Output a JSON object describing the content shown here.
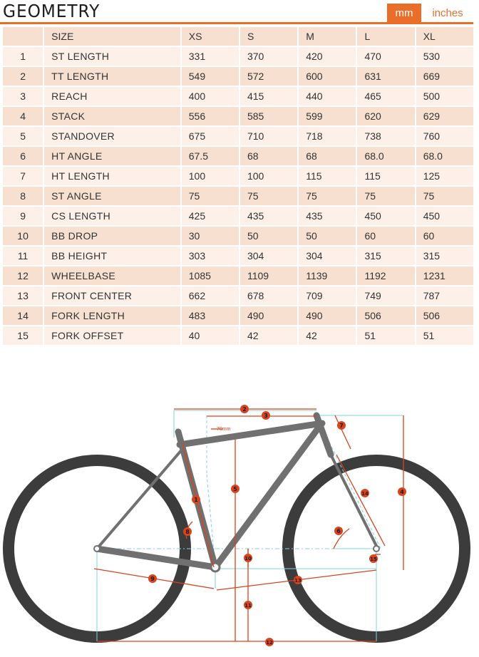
{
  "header": {
    "title": "GEOMETRY",
    "unit_active": "mm",
    "unit_inactive": "inches"
  },
  "table": {
    "columns": [
      "SIZE",
      "XS",
      "S",
      "M",
      "L",
      "XL"
    ],
    "rows": [
      {
        "no": "1",
        "name": "ST LENGTH",
        "values": [
          "331",
          "370",
          "420",
          "470",
          "530"
        ]
      },
      {
        "no": "2",
        "name": "TT LENGTH",
        "values": [
          "549",
          "572",
          "600",
          "631",
          "669"
        ]
      },
      {
        "no": "3",
        "name": "REACH",
        "values": [
          "400",
          "415",
          "440",
          "465",
          "500"
        ]
      },
      {
        "no": "4",
        "name": "STACK",
        "values": [
          "556",
          "585",
          "599",
          "620",
          "629"
        ]
      },
      {
        "no": "5",
        "name": "STANDOVER",
        "values": [
          "675",
          "710",
          "718",
          "738",
          "760"
        ]
      },
      {
        "no": "6",
        "name": "HT ANGLE",
        "values": [
          "67.5",
          "68",
          "68",
          "68.0",
          "68.0"
        ]
      },
      {
        "no": "7",
        "name": "HT LENGTH",
        "values": [
          "100",
          "100",
          "115",
          "115",
          "125"
        ]
      },
      {
        "no": "8",
        "name": "ST ANGLE",
        "values": [
          "75",
          "75",
          "75",
          "75",
          "75"
        ]
      },
      {
        "no": "9",
        "name": "CS LENGTH",
        "values": [
          "425",
          "435",
          "435",
          "450",
          "450"
        ]
      },
      {
        "no": "10",
        "name": "BB DROP",
        "values": [
          "30",
          "50",
          "50",
          "60",
          "60"
        ]
      },
      {
        "no": "11",
        "name": "BB HEIGHT",
        "values": [
          "303",
          "304",
          "304",
          "315",
          "315"
        ]
      },
      {
        "no": "12",
        "name": "WHEELBASE",
        "values": [
          "1085",
          "1109",
          "1139",
          "1192",
          "1231"
        ]
      },
      {
        "no": "13",
        "name": "FRONT CENTER",
        "values": [
          "662",
          "678",
          "709",
          "749",
          "787"
        ]
      },
      {
        "no": "14",
        "name": "FORK LENGTH",
        "values": [
          "483",
          "490",
          "490",
          "506",
          "506"
        ]
      },
      {
        "no": "15",
        "name": "FORK OFFSET",
        "values": [
          "40",
          "42",
          "42",
          "51",
          "51"
        ]
      }
    ]
  },
  "diagram": {
    "offset_label": "70mm",
    "markers": [
      "1",
      "2",
      "3",
      "4",
      "5",
      "6",
      "7",
      "8",
      "9",
      "10",
      "11",
      "12",
      "13",
      "14",
      "15"
    ],
    "colors": {
      "accent": "#ea6d2a",
      "dim_line": "#d9431e",
      "ref_line": "#7fd2e0",
      "tube": "#707070",
      "tire": "#3c3c3c"
    }
  }
}
